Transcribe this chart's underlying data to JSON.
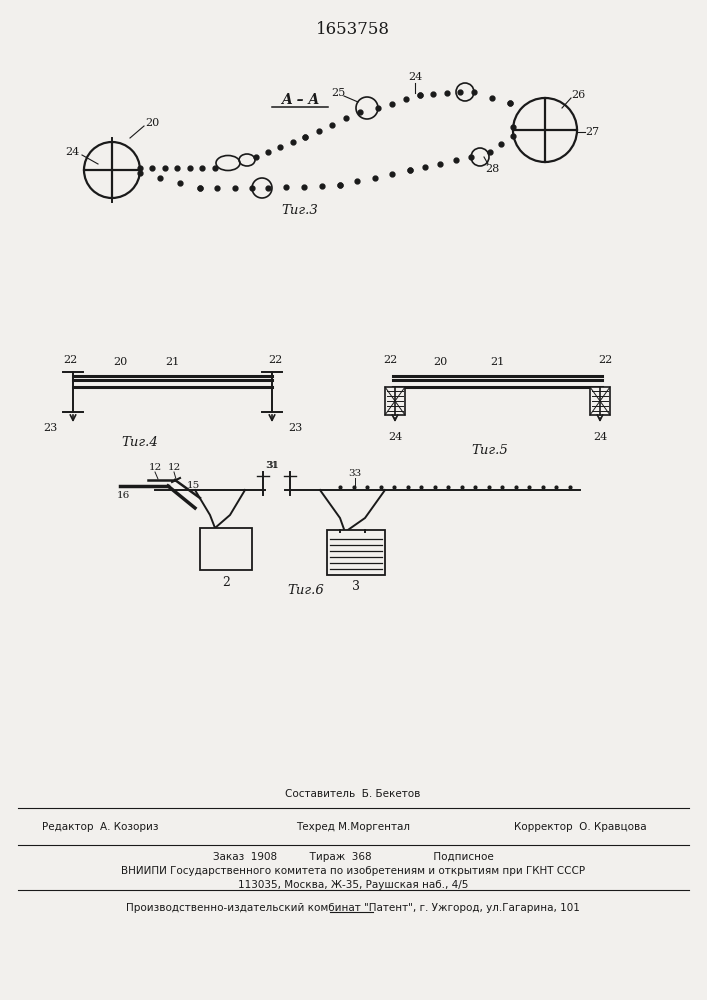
{
  "patent_number": "1653758",
  "bg_color": "#f2f0ed",
  "line_color": "#1a1a1a",
  "fig3_label": "Τиг.3",
  "fig4_label": "Τиг.4",
  "fig5_label": "Τиг.5",
  "fig6_label": "Τиг.6",
  "section_label": "A – A"
}
